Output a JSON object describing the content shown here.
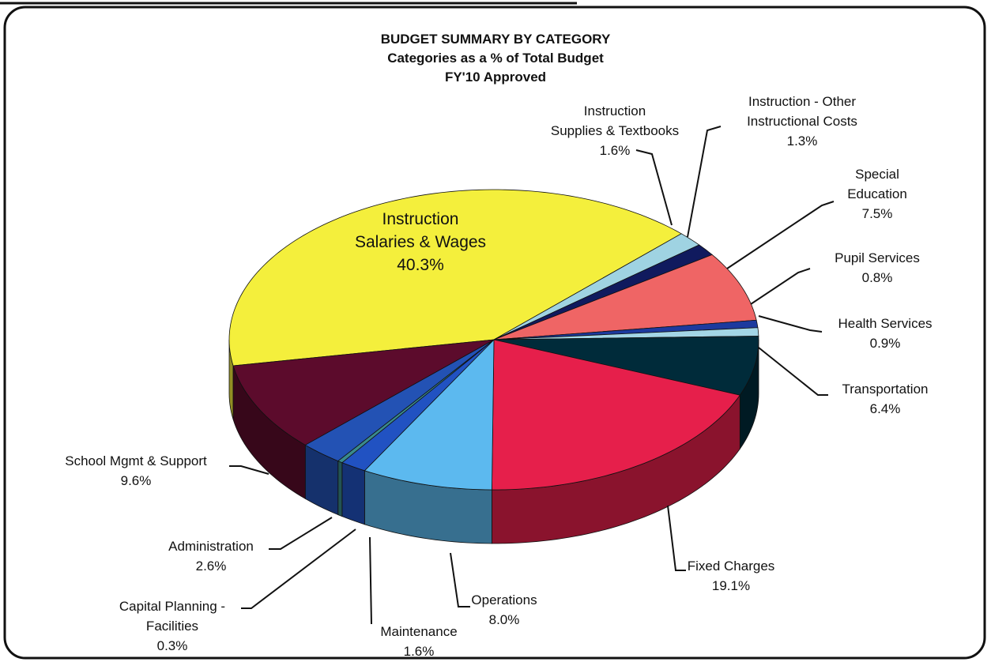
{
  "chart_data": {
    "type": "pie",
    "title": "BUDGET SUMMARY BY CATEGORY",
    "subtitle": "Categories as a % of Total Budget",
    "annotation": "FY'10 Approved",
    "categories": [
      "Instruction\nSalaries & Wages",
      "Instruction\nSupplies & Textbooks",
      "Instruction - Other\nInstructional Costs",
      "Special\nEducation",
      "Pupil Services",
      "Health Services",
      "Transportation",
      "Fixed Charges",
      "Operations",
      "Maintenance",
      "Capital Planning -\nFacilities",
      "Administration",
      "School Mgmt & Support"
    ],
    "values": [
      40.3,
      1.6,
      1.3,
      7.5,
      0.8,
      0.9,
      6.4,
      19.1,
      8.0,
      1.6,
      0.3,
      2.6,
      9.6
    ],
    "value_labels": [
      "40.3%",
      "1.6%",
      "1.3%",
      "7.5%",
      "0.8%",
      "0.9%",
      "6.4%",
      "19.1%",
      "8.0%",
      "1.6%",
      "0.3%",
      "2.6%",
      "9.6%"
    ],
    "colors": [
      "#f4ef3c",
      "#9fd3e2",
      "#101a5e",
      "#ef6565",
      "#1c3a9e",
      "#a3d6e6",
      "#002b3a",
      "#e61f4b",
      "#5cb9ef",
      "#2152c2",
      "#3a8a8c",
      "#2352b4",
      "#5c0b2c"
    ]
  }
}
